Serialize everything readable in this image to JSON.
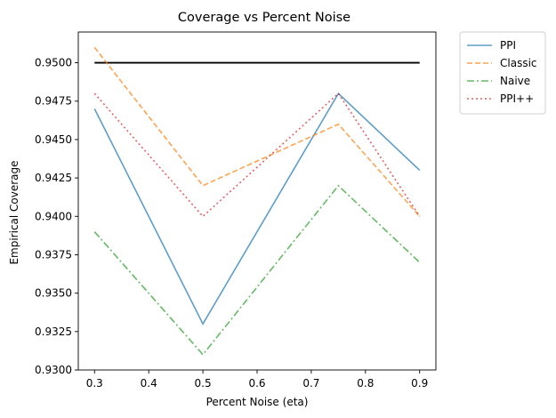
{
  "chart_data": {
    "type": "line",
    "title": "Coverage vs Percent Noise",
    "xlabel": "Percent Noise (eta)",
    "ylabel": "Empirical Coverage",
    "x": [
      0.3,
      0.5,
      0.75,
      0.9
    ],
    "xlim": [
      0.27,
      0.93
    ],
    "ylim": [
      0.93,
      0.952
    ],
    "xticks": [
      0.3,
      0.4,
      0.5,
      0.6,
      0.7,
      0.8,
      0.9
    ],
    "xtick_labels": [
      "0.3",
      "0.4",
      "0.5",
      "0.6",
      "0.7",
      "0.8",
      "0.9"
    ],
    "yticks": [
      0.93,
      0.9325,
      0.935,
      0.9375,
      0.94,
      0.9425,
      0.945,
      0.9475,
      0.95
    ],
    "ytick_labels": [
      "0.9300",
      "0.9325",
      "0.9350",
      "0.9375",
      "0.9400",
      "0.9425",
      "0.9450",
      "0.9475",
      "0.9500"
    ],
    "grid": false,
    "legend_position": "outside-top-right",
    "reference_line": {
      "y": 0.95,
      "x_from": 0.3,
      "x_to": 0.9,
      "color": "#000000"
    },
    "series": [
      {
        "name": "PPI",
        "values": [
          0.947,
          0.933,
          0.948,
          0.943
        ],
        "color": "#1f77b4",
        "style": "solid"
      },
      {
        "name": "Classic",
        "values": [
          0.951,
          0.942,
          0.946,
          0.94
        ],
        "color": "#ff7f0e",
        "style": "dashed"
      },
      {
        "name": "Naive",
        "values": [
          0.939,
          0.931,
          0.942,
          0.937
        ],
        "color": "#2ca02c",
        "style": "dashdot"
      },
      {
        "name": "PPI++",
        "values": [
          0.948,
          0.94,
          0.948,
          0.94
        ],
        "color": "#d62728",
        "style": "dotted"
      }
    ]
  }
}
